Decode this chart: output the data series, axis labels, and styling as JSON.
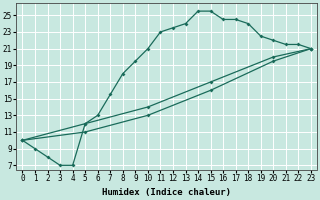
{
  "xlabel": "Humidex (Indice chaleur)",
  "background_color": "#c8e8e0",
  "grid_color": "#ffffff",
  "line_color": "#1a6b5a",
  "xlim": [
    -0.5,
    23.5
  ],
  "ylim": [
    6.5,
    26.5
  ],
  "xticks": [
    0,
    1,
    2,
    3,
    4,
    5,
    6,
    7,
    8,
    9,
    10,
    11,
    12,
    13,
    14,
    15,
    16,
    17,
    18,
    19,
    20,
    21,
    22,
    23
  ],
  "yticks": [
    7,
    9,
    11,
    13,
    15,
    17,
    19,
    21,
    23,
    25
  ],
  "line1_x": [
    0,
    1,
    2,
    3,
    4,
    5,
    6,
    7,
    8,
    9,
    10,
    11,
    12,
    13,
    14,
    15,
    16,
    17,
    18,
    19,
    20,
    21,
    22,
    23
  ],
  "line1_y": [
    10,
    9,
    8,
    7,
    7,
    12,
    13,
    15.5,
    18,
    19.5,
    21,
    23,
    23.5,
    24,
    25.5,
    25.5,
    24.5,
    24.5,
    24,
    22.5,
    22,
    21.5,
    21.5,
    21
  ],
  "line2_x": [
    0,
    5,
    10,
    15,
    20,
    23
  ],
  "line2_y": [
    10,
    12,
    14,
    17,
    20,
    21
  ],
  "line3_x": [
    0,
    5,
    10,
    15,
    20,
    23
  ],
  "line3_y": [
    10,
    11,
    13,
    16,
    19.5,
    21
  ],
  "figwidth": 3.2,
  "figheight": 2.0,
  "dpi": 100
}
